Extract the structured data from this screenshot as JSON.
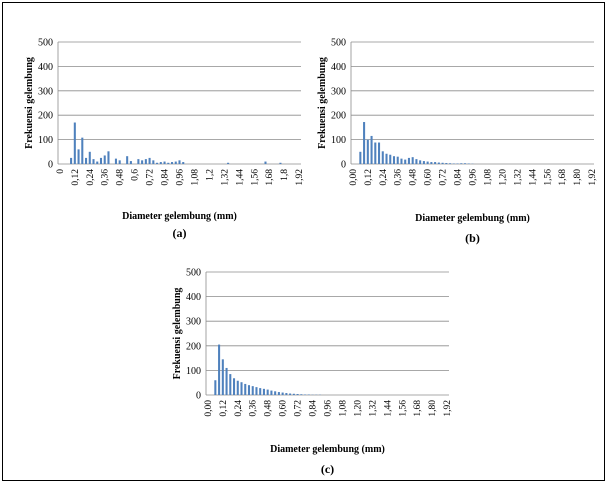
{
  "chart_data": [
    {
      "type": "bar",
      "panel_label": "(a)",
      "xlabel": "Diameter gelembung (mm)",
      "ylabel": "Frekuensi  gelembung",
      "ylim": [
        0,
        500
      ],
      "yticks": [
        "0",
        "100",
        "200",
        "300",
        "400",
        "500"
      ],
      "xticks": [
        "0",
        "0,12",
        "0,24",
        "0,36",
        "0,48",
        "0,6",
        "0,72",
        "0,84",
        "0,96",
        "1,08",
        "1,2",
        "1,32",
        "1,44",
        "1,56",
        "1,68",
        "1,8",
        "1,92"
      ],
      "grid": true,
      "bar_color": "#4f81bd",
      "x_step": 0.03,
      "values": [
        0,
        0,
        0,
        25,
        170,
        60,
        108,
        25,
        50,
        20,
        10,
        25,
        35,
        52,
        0,
        22,
        15,
        0,
        32,
        12,
        0,
        20,
        15,
        20,
        25,
        15,
        5,
        8,
        10,
        5,
        8,
        10,
        15,
        8,
        0,
        0,
        0,
        0,
        0,
        0,
        0,
        0,
        0,
        0,
        0,
        5,
        0,
        0,
        0,
        0,
        0,
        0,
        0,
        0,
        0,
        10,
        0,
        0,
        0,
        5,
        0,
        0,
        0,
        0,
        0
      ]
    },
    {
      "type": "bar",
      "panel_label": "(b)",
      "xlabel": "Diameter gelembung (mm)",
      "ylabel": "Frekuensi  gelembung",
      "ylim": [
        0,
        500
      ],
      "yticks": [
        "0",
        "100",
        "200",
        "300",
        "400",
        "500"
      ],
      "xticks": [
        "0,00",
        "0,12",
        "0,24",
        "0,36",
        "0,48",
        "0,60",
        "0,72",
        "0,84",
        "0,96",
        "1,08",
        "1,20",
        "1,32",
        "1,44",
        "1,56",
        "1,68",
        "1,80",
        "1,92"
      ],
      "grid": true,
      "bar_color": "#4f81bd",
      "x_step": 0.03,
      "values": [
        0,
        0,
        50,
        172,
        100,
        115,
        88,
        88,
        52,
        42,
        38,
        32,
        30,
        22,
        18,
        25,
        28,
        20,
        15,
        12,
        10,
        8,
        8,
        6,
        5,
        4,
        3,
        2,
        2,
        3,
        3,
        2,
        1,
        0,
        0,
        0,
        0,
        0,
        0,
        0,
        0,
        0,
        0,
        0,
        0,
        0,
        0,
        0,
        0,
        0,
        0,
        0,
        0,
        0,
        0,
        0,
        0,
        0,
        0,
        0,
        0,
        0,
        0,
        0,
        0
      ]
    },
    {
      "type": "bar",
      "panel_label": "(c)",
      "xlabel": "Diameter gelembung (mm)",
      "ylabel": "Frekuensi  gelembung",
      "ylim": [
        0,
        500
      ],
      "yticks": [
        "0",
        "100",
        "200",
        "300",
        "400",
        "500"
      ],
      "xticks": [
        "0,00",
        "0,12",
        "0,24",
        "0,36",
        "0,48",
        "0,60",
        "0,72",
        "0,84",
        "0,96",
        "1,08",
        "1,20",
        "1,32",
        "1,44",
        "1,56",
        "1,68",
        "1,80",
        "1,92"
      ],
      "grid": true,
      "bar_color": "#4f81bd",
      "x_step": 0.03,
      "values": [
        0,
        0,
        60,
        205,
        145,
        110,
        85,
        68,
        58,
        52,
        45,
        40,
        36,
        32,
        28,
        25,
        22,
        18,
        15,
        12,
        10,
        8,
        6,
        5,
        4,
        3,
        2,
        2,
        1,
        1,
        1,
        0,
        0,
        0,
        0,
        0,
        0,
        0,
        0,
        0,
        0,
        0,
        0,
        0,
        0,
        0,
        0,
        0,
        0,
        0,
        0,
        0,
        0,
        0,
        0,
        0,
        0,
        0,
        0,
        0,
        0,
        0,
        0,
        0,
        0
      ]
    }
  ]
}
